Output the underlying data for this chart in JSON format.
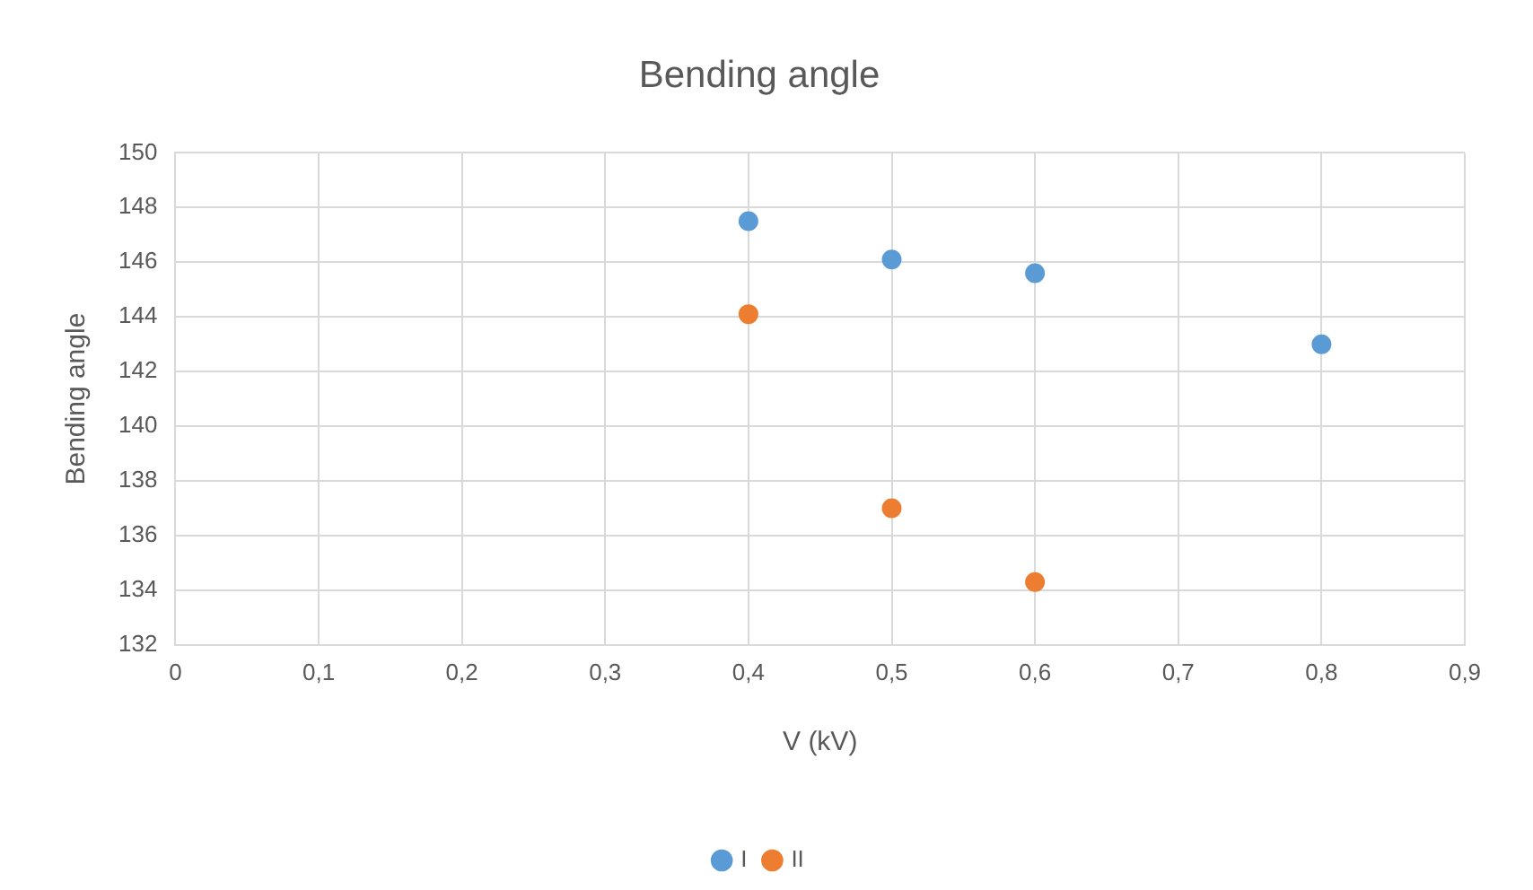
{
  "chart_data": {
    "type": "scatter",
    "title": "Bending angle",
    "xlabel": "V (kV)",
    "ylabel": "Bending angle",
    "series": [
      {
        "name": "I",
        "color": "#5b9bd5",
        "x": [
          0.4,
          0.5,
          0.6,
          0.8
        ],
        "values": [
          147.5,
          146.1,
          145.6,
          143.0
        ]
      },
      {
        "name": "II",
        "color": "#ed7d31",
        "x": [
          0.4,
          0.5,
          0.6
        ],
        "values": [
          144.1,
          137.0,
          134.3
        ]
      }
    ],
    "xlim": [
      0,
      0.9
    ],
    "xticks": [
      0,
      {
        "value": 0.1,
        "label": "0,1"
      },
      {
        "value": 0.2,
        "label": "0,2"
      },
      {
        "value": 0.3,
        "label": "0,3"
      },
      {
        "value": 0.4,
        "label": "0,4"
      },
      {
        "value": 0.5,
        "label": "0,5"
      },
      {
        "value": 0.6,
        "label": "0,6"
      },
      {
        "value": 0.7,
        "label": "0,7"
      },
      {
        "value": 0.8,
        "label": "0,8"
      },
      {
        "value": 0.9,
        "label": "0,9"
      }
    ],
    "ylim": [
      132,
      150
    ],
    "yticks": [
      132,
      134,
      136,
      138,
      140,
      142,
      144,
      146,
      148,
      150
    ],
    "grid": true,
    "legend": "bottom",
    "marker": "circle"
  }
}
